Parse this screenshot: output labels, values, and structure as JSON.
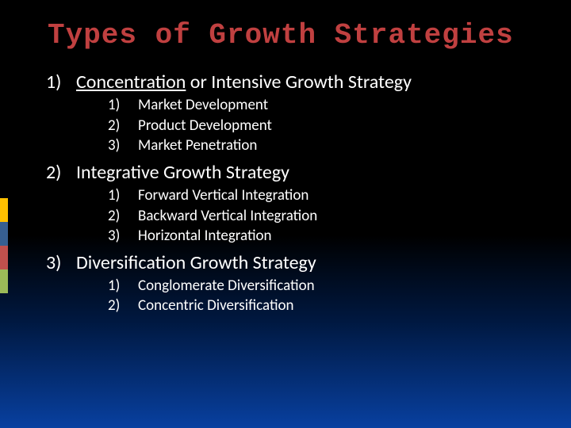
{
  "title": "Types of Growth Strategies",
  "title_color": "#c04040",
  "title_font": "Consolas, 'Courier New', monospace",
  "title_fontsize": 36,
  "body_font": "Calibri, 'Segoe UI', sans-serif",
  "text_color": "#ffffff",
  "background_gradient": [
    "#000000",
    "#000000",
    "#001840",
    "#0840a0"
  ],
  "accent_colors": [
    "#ffc000",
    "#375f91",
    "#c0504d",
    "#9bba58"
  ],
  "main_fontsize": 24,
  "sub_fontsize": 19,
  "items": [
    {
      "num": "1)",
      "label_pre": "Concentration",
      "label_post": " or Intensive Growth Strategy",
      "subs": [
        {
          "num": "1)",
          "label": "Market Development"
        },
        {
          "num": "2)",
          "label": "Product Development"
        },
        {
          "num": "3)",
          "label": "Market Penetration"
        }
      ]
    },
    {
      "num": "2)",
      "label_pre": "",
      "label_post": "Integrative Growth Strategy",
      "subs": [
        {
          "num": "1)",
          "label": "Forward Vertical Integration"
        },
        {
          "num": "2)",
          "label": "Backward Vertical Integration"
        },
        {
          "num": "3)",
          "label": "Horizontal Integration"
        }
      ]
    },
    {
      "num": "3)",
      "label_pre": "",
      "label_post": "Diversification Growth Strategy",
      "subs": [
        {
          "num": "1)",
          "label": "Conglomerate Diversification"
        },
        {
          "num": "2)",
          "label": "Concentric Diversification"
        }
      ]
    }
  ]
}
